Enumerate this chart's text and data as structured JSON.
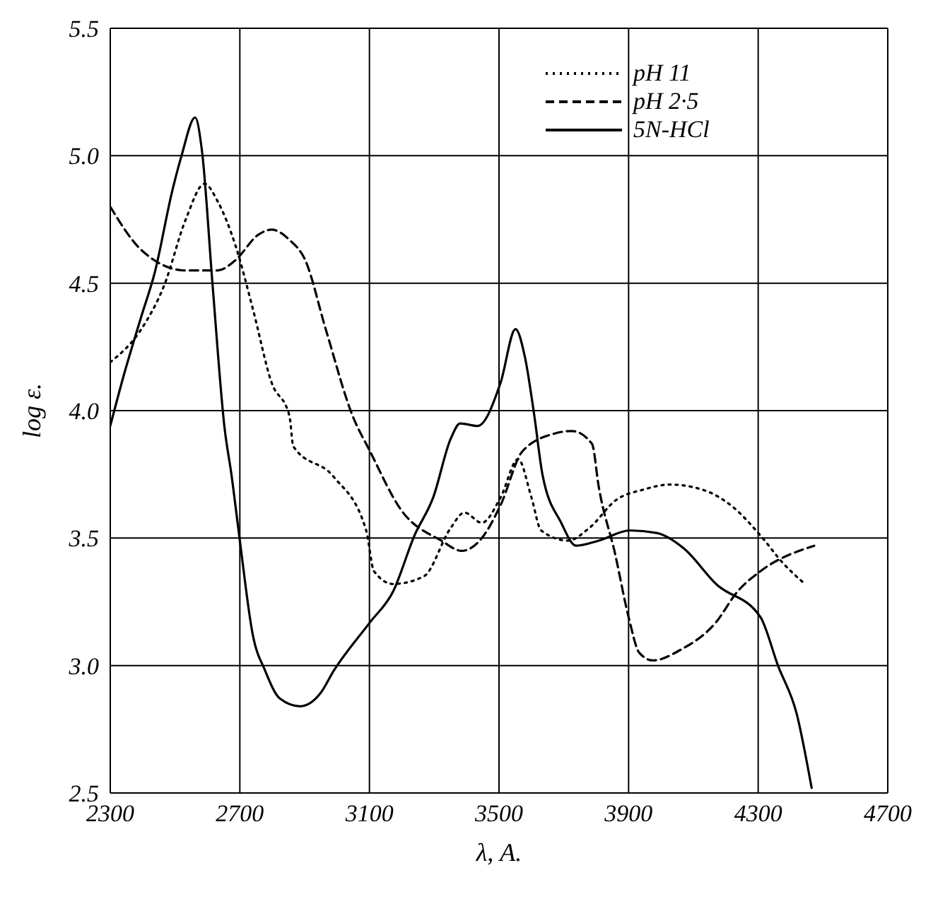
{
  "chart_data": {
    "type": "line",
    "xlabel": "λ, A.",
    "ylabel": "log ε.",
    "xlim": [
      2300,
      4700
    ],
    "xticks": [
      2300,
      2700,
      3100,
      3500,
      3900,
      4300,
      4700
    ],
    "ylim": [
      2.5,
      5.5
    ],
    "yticks": [
      2.5,
      {
        "value": 3,
        "label": "3.0"
      },
      3.5,
      {
        "value": 4,
        "label": "4.0"
      },
      4.5,
      {
        "value": 5,
        "label": "5.0"
      },
      5.5
    ],
    "grid": true,
    "legend": "top right",
    "marker": "none",
    "series": [
      {
        "name": "pH 11",
        "color": "#000000",
        "line_style": "dotted",
        "x": [
          2300,
          2396,
          2466,
          2533,
          2591,
          2632,
          2686,
          2740,
          2798,
          2853,
          2865,
          2990,
          3090,
          3114,
          3173,
          3268,
          3351,
          3393,
          3447,
          3505,
          3559,
          3600,
          3630,
          3713,
          3779,
          3862,
          3945,
          4028,
          4128,
          4224,
          4307,
          4378,
          4444
        ],
        "values": [
          4.19,
          4.32,
          4.49,
          4.75,
          4.89,
          4.82,
          4.65,
          4.4,
          4.11,
          3.98,
          3.86,
          3.74,
          3.53,
          3.37,
          3.32,
          3.35,
          3.54,
          3.6,
          3.56,
          3.66,
          3.81,
          3.66,
          3.53,
          3.49,
          3.54,
          3.65,
          3.69,
          3.71,
          3.69,
          3.62,
          3.51,
          3.4,
          3.32
        ]
      },
      {
        "name": "pH 2·5",
        "color": "#000000",
        "line_style": "dashed",
        "x": [
          2300,
          2396,
          2533,
          2632,
          2686,
          2757,
          2798,
          2853,
          2902,
          2965,
          3048,
          3102,
          3198,
          3322,
          3385,
          3447,
          3505,
          3572,
          3671,
          3725,
          3787,
          3808,
          3858,
          3900,
          3933,
          3975,
          4058,
          4170,
          4236,
          4307,
          4473
        ],
        "values": [
          4.8,
          4.63,
          4.55,
          4.55,
          4.59,
          4.69,
          4.71,
          4.67,
          4.59,
          4.32,
          3.98,
          3.84,
          3.61,
          3.49,
          3.45,
          3.5,
          3.63,
          3.84,
          3.91,
          3.92,
          3.87,
          3.7,
          3.44,
          3.19,
          3.05,
          3.02,
          3.06,
          3.17,
          3.29,
          3.37,
          3.47
        ]
      },
      {
        "name": "5N-HCl",
        "color": "#000000",
        "line_style": "solid",
        "x": [
          2300,
          2342,
          2396,
          2437,
          2491,
          2520,
          2562,
          2583,
          2616,
          2653,
          2674,
          2700,
          2740,
          2778,
          2824,
          2886,
          2948,
          2990,
          3102,
          3173,
          3239,
          3297,
          3351,
          3380,
          3434,
          3505,
          3551,
          3580,
          3609,
          3634,
          3692,
          3738,
          3808,
          3904,
          3987,
          4070,
          4170,
          4307,
          4361,
          4419,
          4465
        ],
        "values": [
          3.94,
          4.14,
          4.37,
          4.54,
          4.86,
          5.0,
          5.15,
          5.02,
          4.49,
          3.93,
          3.75,
          3.49,
          3.12,
          2.98,
          2.87,
          2.84,
          2.89,
          2.98,
          3.17,
          3.29,
          3.51,
          3.66,
          3.89,
          3.95,
          3.94,
          4.11,
          4.32,
          4.21,
          3.98,
          3.75,
          3.56,
          3.47,
          3.49,
          3.53,
          3.52,
          3.46,
          3.32,
          3.19,
          3.0,
          2.81,
          2.52
        ]
      }
    ]
  }
}
